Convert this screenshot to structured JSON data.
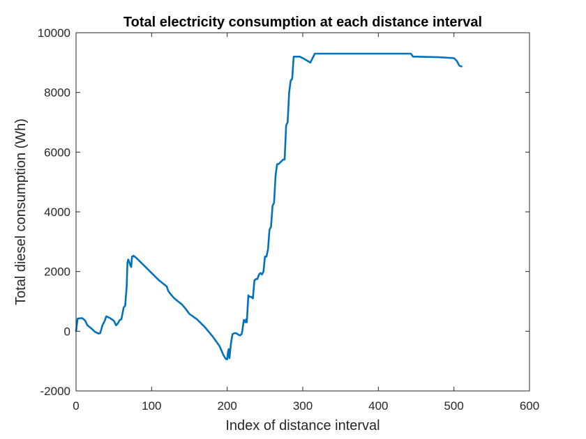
{
  "chart_data": {
    "type": "line",
    "title": "Total electricity consumption at each distance interval",
    "xlabel": "Index of distance interval",
    "ylabel": "Total diesel consumption (Wh)",
    "xlim": [
      0,
      600
    ],
    "ylim": [
      -2000,
      10000
    ],
    "xticks": [
      0,
      100,
      200,
      300,
      400,
      500,
      600
    ],
    "yticks": [
      -2000,
      0,
      2000,
      4000,
      6000,
      8000,
      10000
    ],
    "grid": false,
    "line_color": "#0072BD",
    "series": [
      {
        "x": [
          0,
          2,
          4,
          8,
          12,
          15,
          20,
          25,
          30,
          32,
          35,
          38,
          40,
          45,
          50,
          53,
          55,
          58,
          60,
          63,
          65,
          67,
          68,
          69,
          70,
          72,
          73,
          74,
          76,
          80,
          90,
          100,
          110,
          120,
          122,
          125,
          130,
          140,
          145,
          150,
          160,
          170,
          180,
          190,
          195,
          197,
          198,
          199,
          200,
          201,
          202,
          203,
          205,
          207,
          210,
          213,
          215,
          217,
          219,
          220,
          222,
          224,
          225,
          226,
          228,
          230,
          232,
          234,
          236,
          238,
          240,
          242,
          244,
          246,
          248,
          250,
          252,
          254,
          256,
          258,
          260,
          262,
          264,
          266,
          268,
          270,
          272,
          274,
          276,
          278,
          280,
          282,
          284,
          286,
          288,
          290,
          292,
          294,
          296,
          300,
          310,
          316,
          318,
          320,
          330,
          360,
          400,
          443,
          446,
          450,
          480,
          500,
          502,
          504,
          507,
          510
        ],
        "y": [
          0,
          420,
          430,
          440,
          360,
          200,
          100,
          -20,
          -80,
          -60,
          200,
          350,
          500,
          440,
          350,
          200,
          250,
          380,
          400,
          800,
          850,
          1500,
          2300,
          2400,
          2350,
          2200,
          2150,
          2500,
          2530,
          2450,
          2200,
          1950,
          1700,
          1500,
          1350,
          1250,
          1100,
          900,
          750,
          580,
          400,
          150,
          -150,
          -500,
          -800,
          -880,
          -920,
          -940,
          -940,
          -700,
          -600,
          -900,
          -400,
          -100,
          -60,
          -80,
          -120,
          -140,
          -100,
          10,
          380,
          300,
          400,
          300,
          1200,
          1150,
          1150,
          1100,
          1700,
          1750,
          1750,
          1900,
          1950,
          1900,
          2000,
          2500,
          2500,
          2750,
          3400,
          3500,
          4200,
          4300,
          5200,
          5600,
          5600,
          5650,
          5700,
          5750,
          5750,
          6900,
          7000,
          8000,
          8400,
          8450,
          9200,
          9200,
          9200,
          9200,
          9200,
          9150,
          9000,
          9300,
          9300,
          9300,
          9300,
          9300,
          9300,
          9300,
          9200,
          9200,
          9180,
          9150,
          9100,
          9050,
          8900,
          8870
        ]
      }
    ]
  }
}
